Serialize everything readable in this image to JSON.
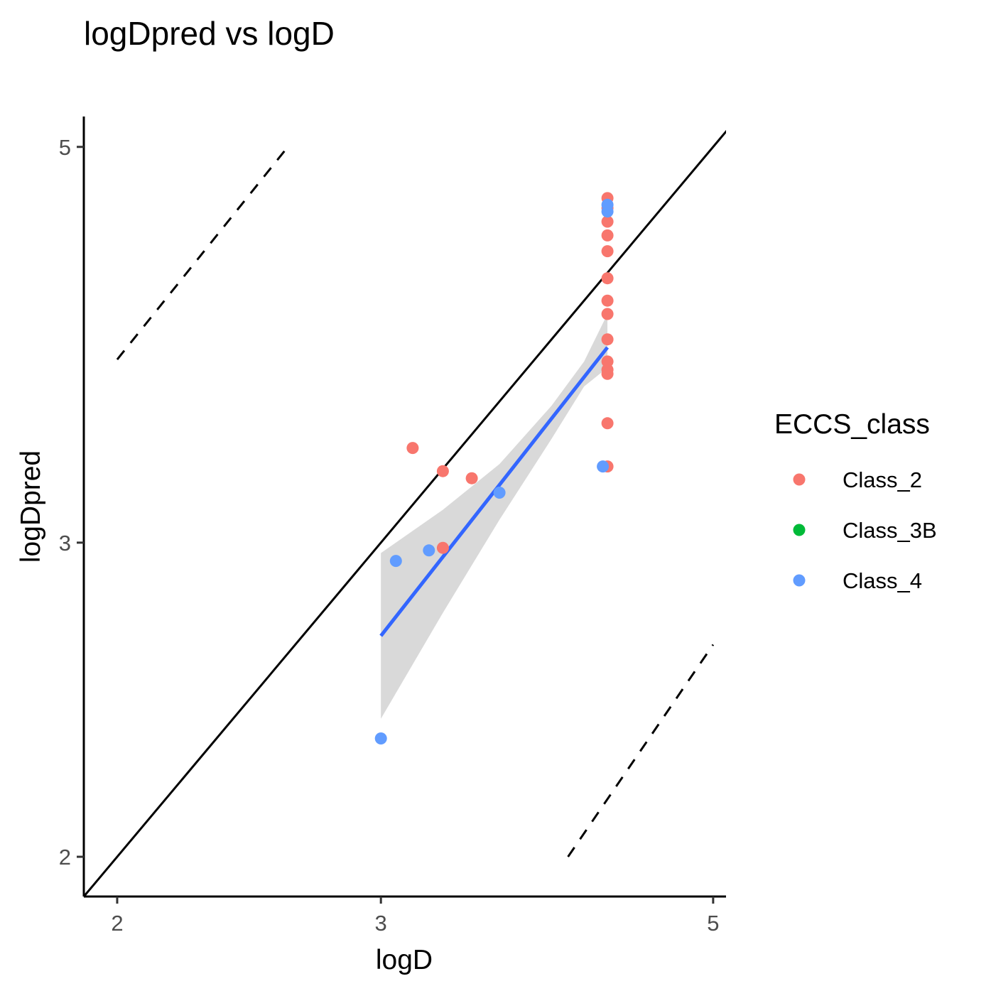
{
  "chart_data": {
    "type": "scatter",
    "title": "logDpred vs logD",
    "xlabel": "logD",
    "ylabel": "logDpred",
    "x_scale": "log10",
    "y_scale": "log10",
    "xlim": [
      1.9,
      5.1
    ],
    "ylim": [
      1.9,
      5.2
    ],
    "x_ticks": [
      2,
      3,
      5
    ],
    "y_ticks": [
      2,
      3,
      5
    ],
    "x_tick_labels": [
      "2",
      "3",
      "5"
    ],
    "y_tick_labels": [
      "2",
      "3",
      "5"
    ],
    "grid": false,
    "legend": {
      "title": "ECCS_class",
      "placement": "right",
      "entries": [
        {
          "name": "Class_2",
          "color": "#F8766D"
        },
        {
          "name": "Class_3B",
          "color": "#00BA38"
        },
        {
          "name": "Class_4",
          "color": "#619CFF"
        }
      ]
    },
    "series": [
      {
        "name": "Class_2",
        "color": "#F8766D",
        "points": [
          [
            4.25,
            4.68
          ],
          [
            4.25,
            4.62
          ],
          [
            4.25,
            4.54
          ],
          [
            4.25,
            4.46
          ],
          [
            4.25,
            4.37
          ],
          [
            4.25,
            4.22
          ],
          [
            4.25,
            4.1
          ],
          [
            4.25,
            4.03
          ],
          [
            4.25,
            3.9
          ],
          [
            4.25,
            3.79
          ],
          [
            4.25,
            3.75
          ],
          [
            4.25,
            3.73
          ],
          [
            4.25,
            3.5
          ],
          [
            4.25,
            3.31
          ],
          [
            3.15,
            3.39
          ],
          [
            3.3,
            3.29
          ],
          [
            3.45,
            3.26
          ],
          [
            3.3,
            2.98
          ]
        ]
      },
      {
        "name": "Class_3B",
        "color": "#00BA38",
        "points": []
      },
      {
        "name": "Class_4",
        "color": "#619CFF",
        "points": [
          [
            4.25,
            4.64
          ],
          [
            4.25,
            4.6
          ],
          [
            4.22,
            3.31
          ],
          [
            3.6,
            3.2
          ],
          [
            3.07,
            2.93
          ],
          [
            3.23,
            2.97
          ],
          [
            3.0,
            2.33
          ]
        ]
      }
    ],
    "identity_line": {
      "style": "solid",
      "color": "#000000"
    },
    "fold_lines": [
      {
        "style": "dashed",
        "from": [
          2.0,
          3.8
        ],
        "to": [
          2.6,
          5.0
        ]
      },
      {
        "style": "dashed",
        "from": [
          4.0,
          2.0
        ],
        "to": [
          5.0,
          2.63
        ]
      }
    ],
    "fit_line": {
      "color": "#3366FF",
      "from": [
        3.0,
        2.66
      ],
      "to": [
        4.25,
        3.86
      ]
    },
    "confidence_band": {
      "color": "#d9d9d9",
      "x": [
        3.0,
        3.3,
        3.6,
        3.9,
        4.1,
        4.25
      ],
      "upper": [
        2.96,
        3.13,
        3.32,
        3.58,
        3.79,
        4.03
      ],
      "lower": [
        2.39,
        2.74,
        3.09,
        3.43,
        3.67,
        3.76
      ]
    }
  }
}
